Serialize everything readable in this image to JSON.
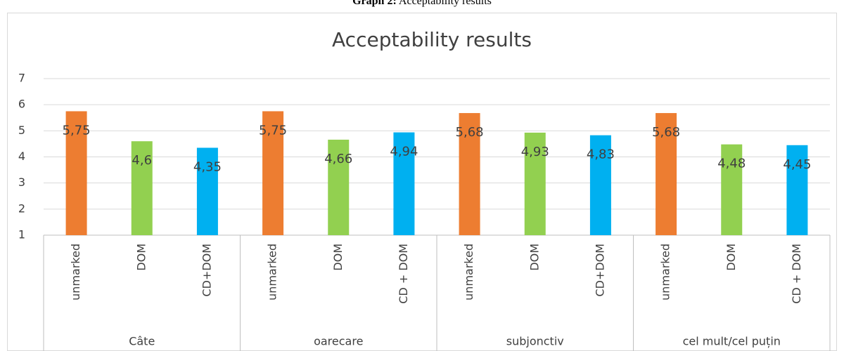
{
  "chart_data": {
    "type": "bar",
    "caption": {
      "label": "Graph 2:",
      "text": "Acceptability results"
    },
    "title": "Acceptability results",
    "groups": [
      "Câte",
      "oarecare",
      "subjonctiv",
      "cel mult/cel puțin"
    ],
    "categories": [
      "unmarked",
      "DOM",
      "CD+DOM",
      "unmarked",
      "DOM",
      "CD + DOM",
      "unmarked",
      "DOM",
      "CD+DOM",
      "unmarked",
      "DOM",
      "CD + DOM"
    ],
    "values": [
      5.75,
      4.6,
      4.35,
      5.75,
      4.66,
      4.94,
      5.68,
      4.93,
      4.83,
      5.68,
      4.48,
      4.45
    ],
    "value_labels": [
      "5,75",
      "4,6",
      "4,35",
      "5,75",
      "4,66",
      "4,94",
      "5,68",
      "4,93",
      "4,83",
      "5,68",
      "4,48",
      "4,45"
    ],
    "colors": [
      "#ed7d31",
      "#92d050",
      "#00b0f0",
      "#ed7d31",
      "#92d050",
      "#00b0f0",
      "#ed7d31",
      "#92d050",
      "#00b0f0",
      "#ed7d31",
      "#92d050",
      "#00b0f0"
    ],
    "ylim": [
      1,
      7
    ],
    "yticks": [
      1,
      2,
      3,
      4,
      5,
      6,
      7
    ],
    "grid": true
  }
}
